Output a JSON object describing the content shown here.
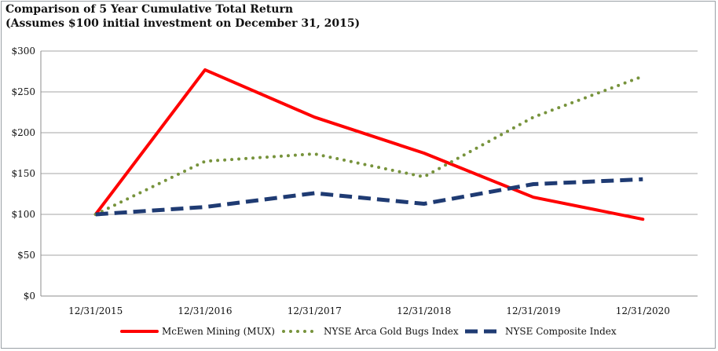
{
  "chart_data": {
    "type": "line",
    "title": "Comparison of 5 Year Cumulative Total Return",
    "subtitle": "(Assumes $100 initial investment on December 31, 2015)",
    "categories": [
      "12/31/2015",
      "12/31/2016",
      "12/31/2017",
      "12/31/2018",
      "12/31/2019",
      "12/31/2020"
    ],
    "y_ticks": [
      "$0",
      "$50",
      "$100",
      "$150",
      "$200",
      "$250",
      "$300"
    ],
    "ylim": [
      0,
      300
    ],
    "grid": true,
    "legend_position": "bottom",
    "series": [
      {
        "name": "McEwen Mining (MUX)",
        "values": [
          100,
          277,
          219,
          175,
          121,
          94
        ],
        "color": "#ff0000",
        "style": "solid"
      },
      {
        "name": "NYSE Arca Gold Bugs Index",
        "values": [
          100,
          165,
          174,
          146,
          219,
          269
        ],
        "color": "#77933c",
        "style": "dotted"
      },
      {
        "name": "NYSE Composite Index",
        "values": [
          100,
          109,
          126,
          113,
          137,
          143
        ],
        "color": "#1f3b73",
        "style": "dashed"
      }
    ]
  }
}
